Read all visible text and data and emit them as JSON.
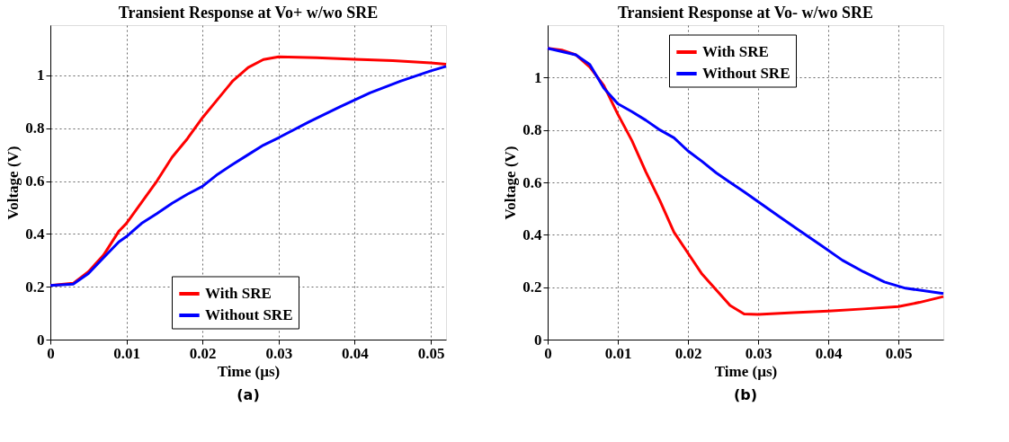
{
  "chart_data": [
    {
      "type": "line",
      "title": "Transient Response at Vo+ w/wo SRE",
      "xlabel": "Time (µs)",
      "ylabel": "Voltage (V)",
      "annotations": [
        "(a)"
      ],
      "xlim": [
        0,
        0.052
      ],
      "ylim": [
        0,
        1.19
      ],
      "xticks": [
        0,
        0.01,
        0.02,
        0.03,
        0.04,
        0.05
      ],
      "yticks": [
        0,
        0.2,
        0.4,
        0.6,
        0.8,
        1
      ],
      "grid": true,
      "legend": "bottom",
      "line_style": "solid",
      "marker": "none",
      "series": [
        {
          "name": "With SRE",
          "color": "#ff0000",
          "x": [
            0,
            0.003,
            0.005,
            0.007,
            0.009,
            0.01,
            0.012,
            0.014,
            0.016,
            0.018,
            0.02,
            0.022,
            0.024,
            0.026,
            0.028,
            0.03,
            0.035,
            0.04,
            0.045,
            0.05,
            0.052
          ],
          "values": [
            0.205,
            0.213,
            0.257,
            0.32,
            0.41,
            0.44,
            0.52,
            0.6,
            0.69,
            0.76,
            0.84,
            0.91,
            0.98,
            1.03,
            1.06,
            1.07,
            1.067,
            1.061,
            1.056,
            1.047,
            1.042
          ]
        },
        {
          "name": "Without SRE",
          "color": "#0000ff",
          "x": [
            0,
            0.003,
            0.005,
            0.007,
            0.009,
            0.01,
            0.012,
            0.014,
            0.016,
            0.018,
            0.02,
            0.022,
            0.024,
            0.026,
            0.028,
            0.03,
            0.034,
            0.038,
            0.042,
            0.046,
            0.05,
            0.052
          ],
          "values": [
            0.205,
            0.21,
            0.25,
            0.31,
            0.37,
            0.39,
            0.44,
            0.477,
            0.516,
            0.55,
            0.58,
            0.626,
            0.664,
            0.7,
            0.736,
            0.764,
            0.824,
            0.88,
            0.934,
            0.978,
            1.017,
            1.034
          ]
        }
      ]
    },
    {
      "type": "line",
      "title": "Transient Response at Vo- w/wo SRE",
      "xlabel": "Time (µs)",
      "ylabel": "Voltage (V)",
      "annotations": [
        "(b)"
      ],
      "xlim": [
        0,
        0.0564
      ],
      "ylim": [
        0,
        1.2
      ],
      "xticks": [
        0,
        0.01,
        0.02,
        0.03,
        0.04,
        0.05
      ],
      "yticks": [
        0,
        0.2,
        0.4,
        0.6,
        0.8,
        1
      ],
      "grid": true,
      "legend": "top",
      "line_style": "solid",
      "marker": "none",
      "series": [
        {
          "name": "With SRE",
          "color": "#ff0000",
          "x": [
            0,
            0.002,
            0.004,
            0.006,
            0.008,
            0.01,
            0.012,
            0.014,
            0.016,
            0.018,
            0.02,
            0.022,
            0.024,
            0.026,
            0.028,
            0.03,
            0.035,
            0.04,
            0.045,
            0.05,
            0.053,
            0.0564
          ],
          "values": [
            1.112,
            1.105,
            1.087,
            1.04,
            0.97,
            0.86,
            0.76,
            0.64,
            0.53,
            0.41,
            0.33,
            0.25,
            0.19,
            0.13,
            0.098,
            0.096,
            0.103,
            0.109,
            0.117,
            0.126,
            0.142,
            0.164
          ]
        },
        {
          "name": "Without SRE",
          "color": "#0000ff",
          "x": [
            0,
            0.004,
            0.006,
            0.008,
            0.01,
            0.012,
            0.014,
            0.016,
            0.018,
            0.02,
            0.022,
            0.024,
            0.026,
            0.028,
            0.03,
            0.033,
            0.036,
            0.039,
            0.042,
            0.045,
            0.048,
            0.051,
            0.0564
          ],
          "values": [
            1.112,
            1.087,
            1.05,
            0.96,
            0.9,
            0.87,
            0.837,
            0.8,
            0.77,
            0.72,
            0.68,
            0.637,
            0.6,
            0.564,
            0.526,
            0.47,
            0.414,
            0.359,
            0.303,
            0.259,
            0.22,
            0.196,
            0.176
          ]
        }
      ]
    }
  ]
}
